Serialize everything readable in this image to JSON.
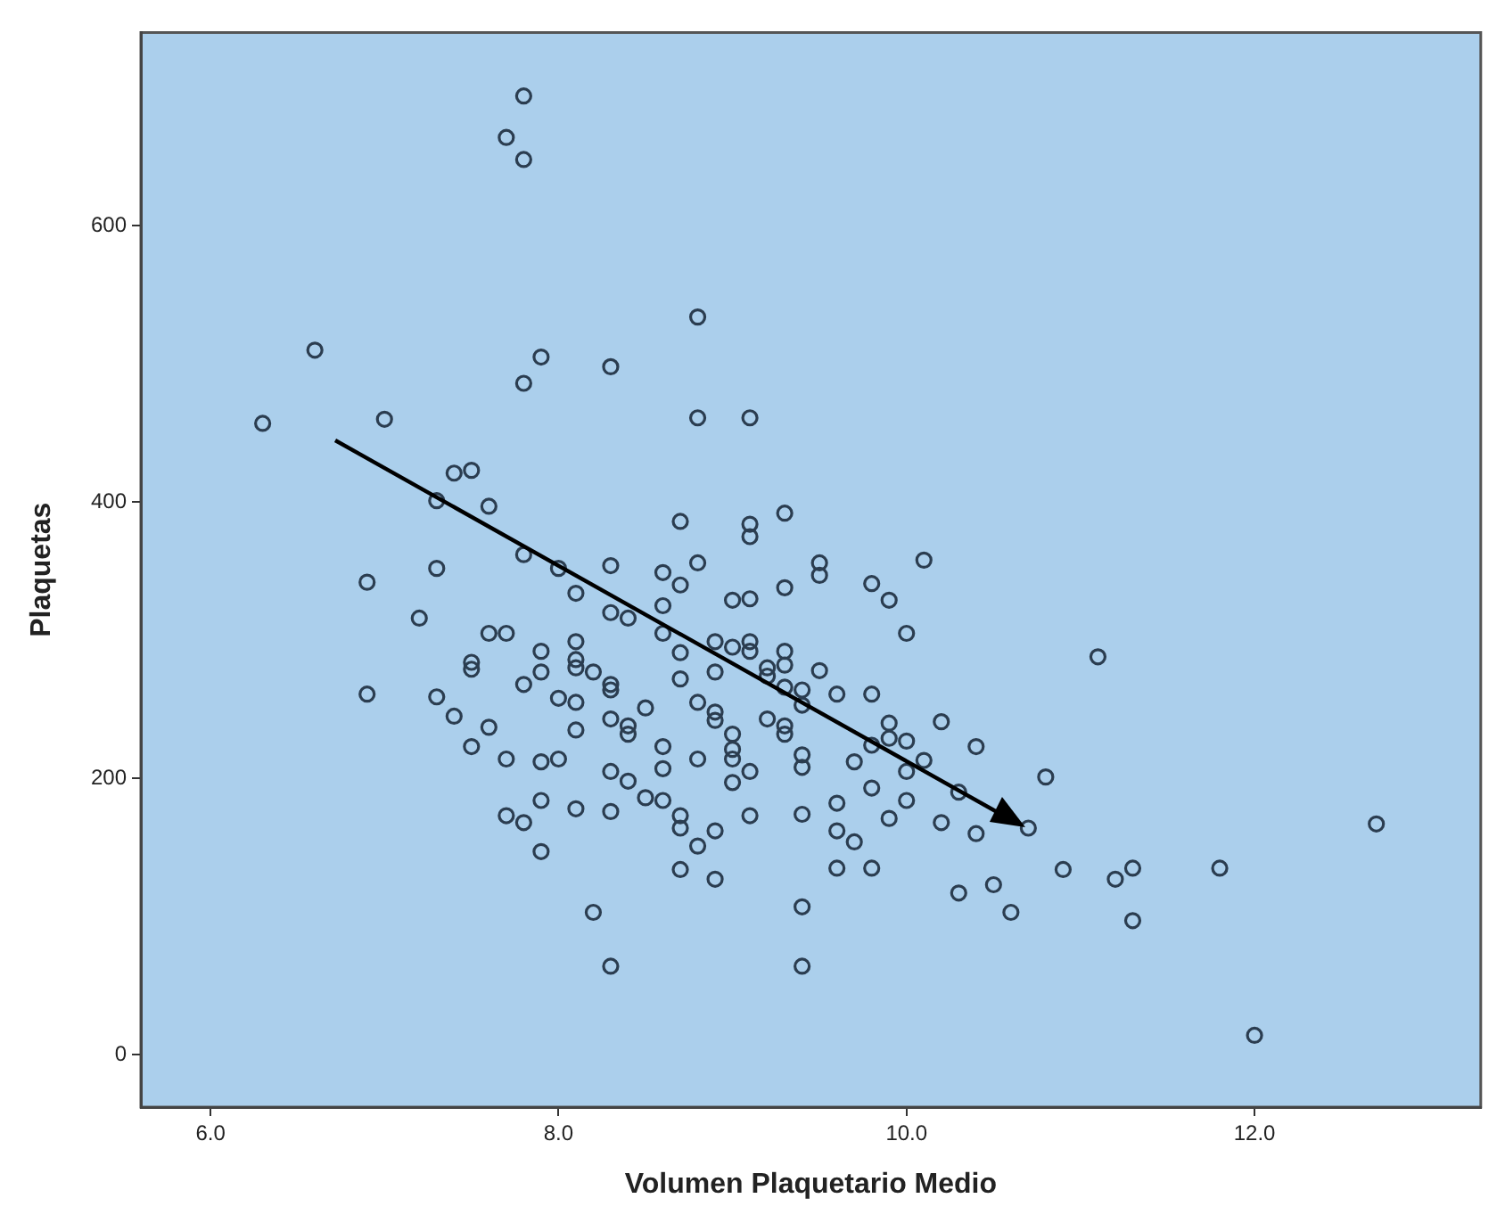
{
  "chart_data": {
    "type": "scatter",
    "xlabel": "Volumen Plaquetario Medio",
    "ylabel": "Plaquetas",
    "marker": "circle",
    "grid": false,
    "legend": false,
    "xlim": [
      5.6,
      13.3
    ],
    "ylim": [
      -38,
      740
    ],
    "xticks": [
      {
        "value": 6,
        "label": "6.0"
      },
      {
        "value": 8,
        "label": "8.0"
      },
      {
        "value": 10,
        "label": "10.0"
      },
      {
        "value": 12,
        "label": "12.0"
      }
    ],
    "yticks": [
      0,
      200,
      400,
      600
    ],
    "series": [
      {
        "color": "#2b3d50",
        "x": [
          6.3,
          6.6,
          7.0,
          7.7,
          7.8,
          7.8,
          7.9,
          7.8,
          8.3,
          8.8,
          8.8,
          9.1,
          6.9,
          6.9,
          7.3,
          7.4,
          7.5,
          7.3,
          7.2,
          7.6,
          7.6,
          7.7,
          7.5,
          7.5,
          7.3,
          7.4,
          7.5,
          7.6,
          7.7,
          7.8,
          7.8,
          7.9,
          7.9,
          8.0,
          8.0,
          7.9,
          8.0,
          7.7,
          7.8,
          7.9,
          7.9,
          8.1,
          8.1,
          8.1,
          8.1,
          8.1,
          8.1,
          8.2,
          8.3,
          8.3,
          8.4,
          8.3,
          8.3,
          8.3,
          8.4,
          8.4,
          8.5,
          8.4,
          8.3,
          8.5,
          8.6,
          8.6,
          8.6,
          8.1,
          8.3,
          8.2,
          8.3,
          8.6,
          8.6,
          8.6,
          8.7,
          8.7,
          8.7,
          8.7,
          8.8,
          8.8,
          8.8,
          8.7,
          8.7,
          8.7,
          8.8,
          8.9,
          8.9,
          8.9,
          8.9,
          8.9,
          8.9,
          9.0,
          9.0,
          9.0,
          9.0,
          9.0,
          9.0,
          9.1,
          9.1,
          9.1,
          9.1,
          9.1,
          9.1,
          9.1,
          9.2,
          9.2,
          9.2,
          9.3,
          9.3,
          9.3,
          9.3,
          9.3,
          9.3,
          9.3,
          9.4,
          9.4,
          9.4,
          9.4,
          9.4,
          9.4,
          9.4,
          9.5,
          9.5,
          9.5,
          9.6,
          9.6,
          9.6,
          9.6,
          9.7,
          9.7,
          9.8,
          9.8,
          9.8,
          9.8,
          9.8,
          9.9,
          9.9,
          9.9,
          9.9,
          10.0,
          10.0,
          10.0,
          10.0,
          10.1,
          10.1,
          10.2,
          10.2,
          10.3,
          10.3,
          10.4,
          10.4,
          10.5,
          10.6,
          10.7,
          10.8,
          10.9,
          11.1,
          11.2,
          11.3,
          11.3,
          11.8,
          12.0,
          12.7
        ],
        "values": [
          457,
          510,
          460,
          664,
          694,
          648,
          505,
          486,
          498,
          534,
          461,
          461,
          342,
          261,
          401,
          421,
          423,
          352,
          316,
          397,
          305,
          305,
          284,
          279,
          259,
          245,
          223,
          237,
          214,
          362,
          268,
          292,
          277,
          352,
          258,
          212,
          214,
          173,
          168,
          184,
          147,
          334,
          299,
          286,
          280,
          255,
          235,
          277,
          354,
          320,
          316,
          268,
          264,
          243,
          238,
          232,
          251,
          198,
          205,
          186,
          184,
          207,
          223,
          178,
          176,
          103,
          64,
          349,
          325,
          305,
          386,
          340,
          291,
          272,
          356,
          255,
          214,
          173,
          164,
          134,
          151,
          299,
          277,
          248,
          242,
          162,
          127,
          329,
          295,
          232,
          221,
          214,
          197,
          330,
          384,
          375,
          299,
          292,
          205,
          173,
          280,
          274,
          243,
          392,
          338,
          292,
          282,
          266,
          238,
          232,
          264,
          253,
          217,
          208,
          174,
          107,
          64,
          356,
          347,
          278,
          261,
          182,
          162,
          135,
          154,
          212,
          341,
          261,
          224,
          193,
          135,
          329,
          240,
          229,
          171,
          305,
          227,
          205,
          184,
          358,
          213,
          241,
          168,
          190,
          117,
          223,
          160,
          123,
          103,
          164,
          201,
          134,
          288,
          127,
          135,
          97,
          135,
          14,
          167
        ]
      }
    ]
  }
}
